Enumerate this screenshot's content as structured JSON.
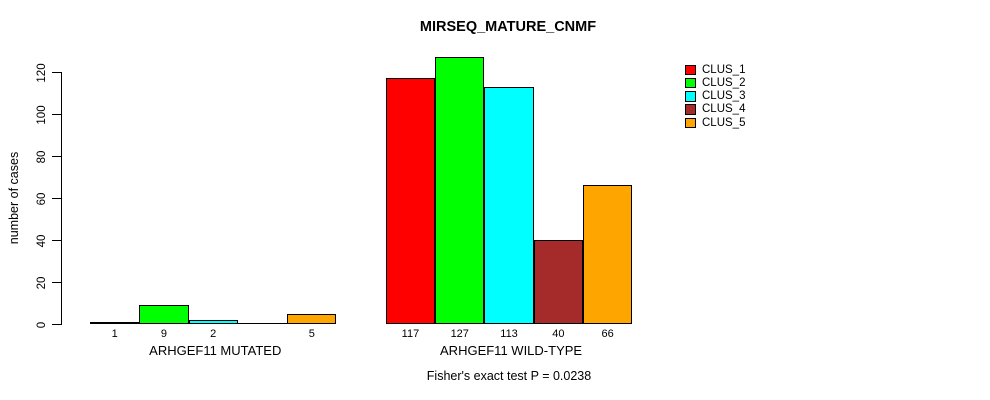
{
  "chart_data": {
    "type": "bar",
    "title": "MIRSEQ_MATURE_CNMF",
    "ylabel": "number of cases",
    "annotation": "Fisher's exact test P = 0.0238",
    "categories": [
      "ARHGEF11 MUTATED",
      "ARHGEF11 WILD-TYPE"
    ],
    "series": [
      {
        "name": "CLUS_1",
        "color": "#ff0000",
        "values": [
          1,
          117
        ]
      },
      {
        "name": "CLUS_2",
        "color": "#00ff00",
        "values": [
          9,
          127
        ]
      },
      {
        "name": "CLUS_3",
        "color": "#00ffff",
        "values": [
          2,
          113
        ]
      },
      {
        "name": "CLUS_4",
        "color": "#a52a2a",
        "values": [
          0,
          40
        ]
      },
      {
        "name": "CLUS_5",
        "color": "#ffa500",
        "values": [
          5,
          66
        ]
      }
    ],
    "bar_value_labels": [
      [
        "1",
        "9",
        "2",
        null,
        "5"
      ],
      [
        "117",
        "127",
        "113",
        "40",
        "66"
      ]
    ],
    "yticks": [
      0,
      20,
      40,
      60,
      80,
      100,
      120
    ],
    "ylim": [
      0,
      130
    ],
    "grid": false,
    "legend_position": "right",
    "axis_color": "#000000",
    "background_color": "#ffffff"
  }
}
